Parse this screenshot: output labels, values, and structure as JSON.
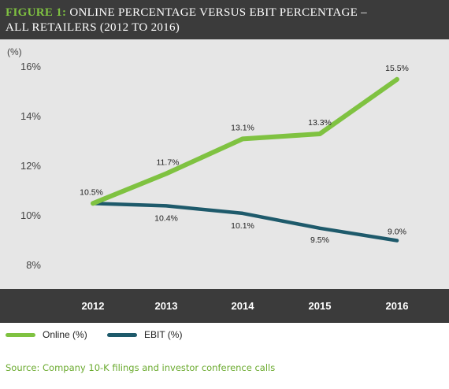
{
  "header": {
    "figure_label": "FIGURE 1:",
    "title_line1": " ONLINE PERCENTAGE VERSUS EBIT PERCENTAGE –",
    "title_line2": "ALL RETAILERS (2012 TO 2016)"
  },
  "chart_data": {
    "type": "line",
    "ylabel": "(%)",
    "xlabel": "",
    "categories": [
      "2012",
      "2013",
      "2014",
      "2015",
      "2016"
    ],
    "ylim": [
      8,
      16
    ],
    "yticks": [
      8,
      10,
      12,
      14,
      16
    ],
    "ytick_labels": [
      "8%",
      "10%",
      "12%",
      "14%",
      "16%"
    ],
    "series": [
      {
        "name": "Online (%)",
        "color": "#7fc241",
        "values": [
          10.5,
          11.7,
          13.1,
          13.3,
          15.5
        ],
        "labels": [
          "10.5%",
          "11.7%",
          "13.1%",
          "13.3%",
          "15.5%"
        ]
      },
      {
        "name": "EBIT (%)",
        "color": "#1e5a6b",
        "values": [
          10.5,
          10.4,
          10.1,
          9.5,
          9.0
        ],
        "labels": [
          "",
          "10.4%",
          "10.1%",
          "9.5%",
          "9.0%"
        ]
      }
    ],
    "grid": false,
    "legend": "bottom-left"
  },
  "source_text": "Source: Company 10-K filings and investor conference calls"
}
